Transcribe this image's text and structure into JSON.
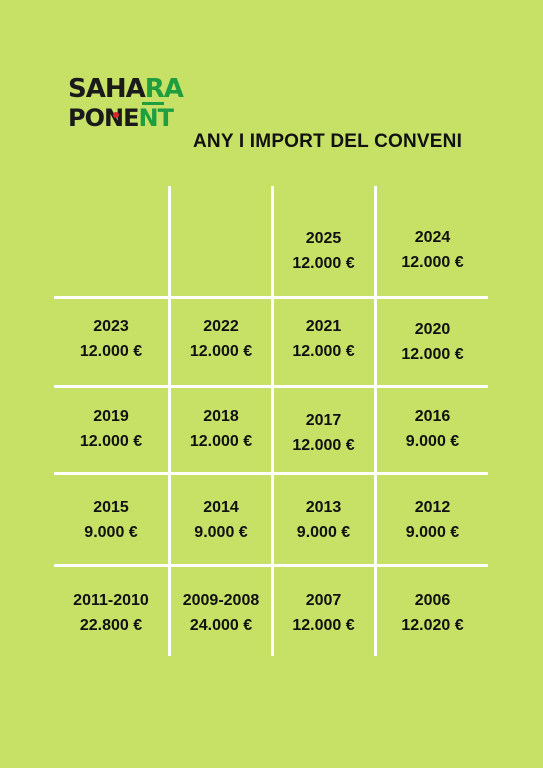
{
  "logo": {
    "row1_black": "SAHA",
    "row1_green": "RA",
    "row2_black": "PONE",
    "row2_green": "NT"
  },
  "title": "ANY I IMPORT DEL CONVENI",
  "cells": [
    {
      "year": "2025",
      "amount": "12.000 €"
    },
    {
      "year": "2024",
      "amount": "12.000 €"
    },
    {
      "year": "2023",
      "amount": "12.000 €"
    },
    {
      "year": "2022",
      "amount": "12.000 €"
    },
    {
      "year": "2021",
      "amount": "12.000 €"
    },
    {
      "year": "2020",
      "amount": "12.000 €"
    },
    {
      "year": "2019",
      "amount": "12.000 €"
    },
    {
      "year": "2018",
      "amount": "12.000 €"
    },
    {
      "year": "2017",
      "amount": "12.000 €"
    },
    {
      "year": "2016",
      "amount": "9.000 €"
    },
    {
      "year": "2015",
      "amount": "9.000 €"
    },
    {
      "year": "2014",
      "amount": "9.000 €"
    },
    {
      "year": "2013",
      "amount": "9.000 €"
    },
    {
      "year": "2012",
      "amount": "9.000 €"
    },
    {
      "year": "2011-2010",
      "amount": "22.800 €"
    },
    {
      "year": "2009-2008",
      "amount": "24.000 €"
    },
    {
      "year": "2007",
      "amount": "12.000 €"
    },
    {
      "year": "2006",
      "amount": "12.020 €"
    }
  ]
}
